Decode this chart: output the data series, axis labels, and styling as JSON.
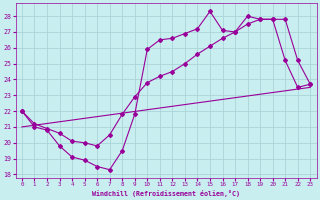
{
  "xlabel": "Windchill (Refroidissement éolien,°C)",
  "bg_color": "#c8eef0",
  "grid_color": "#aad4d8",
  "line_color": "#990099",
  "xlim": [
    -0.5,
    23.5
  ],
  "ylim": [
    17.8,
    28.8
  ],
  "yticks": [
    18,
    19,
    20,
    21,
    22,
    23,
    24,
    25,
    26,
    27,
    28
  ],
  "xticks": [
    0,
    1,
    2,
    3,
    4,
    5,
    6,
    7,
    8,
    9,
    10,
    11,
    12,
    13,
    14,
    15,
    16,
    17,
    18,
    19,
    20,
    21,
    22,
    23
  ],
  "curve1_x": [
    0,
    1,
    2,
    3,
    4,
    5,
    6,
    7,
    8,
    9,
    10,
    11,
    12,
    13,
    14,
    15,
    16,
    17,
    18,
    19,
    20,
    21,
    22,
    23
  ],
  "curve1_y": [
    22.0,
    21.0,
    20.8,
    19.8,
    19.1,
    18.9,
    18.5,
    18.3,
    19.5,
    21.8,
    25.9,
    26.5,
    26.6,
    26.9,
    27.2,
    28.3,
    27.1,
    27.0,
    28.0,
    27.8,
    27.8,
    25.2,
    23.5,
    23.7
  ],
  "curve2_x": [
    0,
    1,
    2,
    3,
    4,
    5,
    6,
    7,
    8,
    9,
    10,
    11,
    12,
    13,
    14,
    15,
    16,
    17,
    18,
    19,
    20,
    21,
    22,
    23
  ],
  "curve2_y": [
    22.0,
    21.2,
    20.9,
    20.6,
    20.1,
    20.0,
    19.8,
    20.5,
    21.8,
    22.9,
    23.8,
    24.2,
    24.5,
    25.0,
    25.6,
    26.1,
    26.6,
    27.0,
    27.5,
    27.8,
    27.8,
    27.8,
    25.2,
    23.7
  ],
  "curve3_x": [
    0,
    23
  ],
  "curve3_y": [
    21.0,
    23.5
  ]
}
